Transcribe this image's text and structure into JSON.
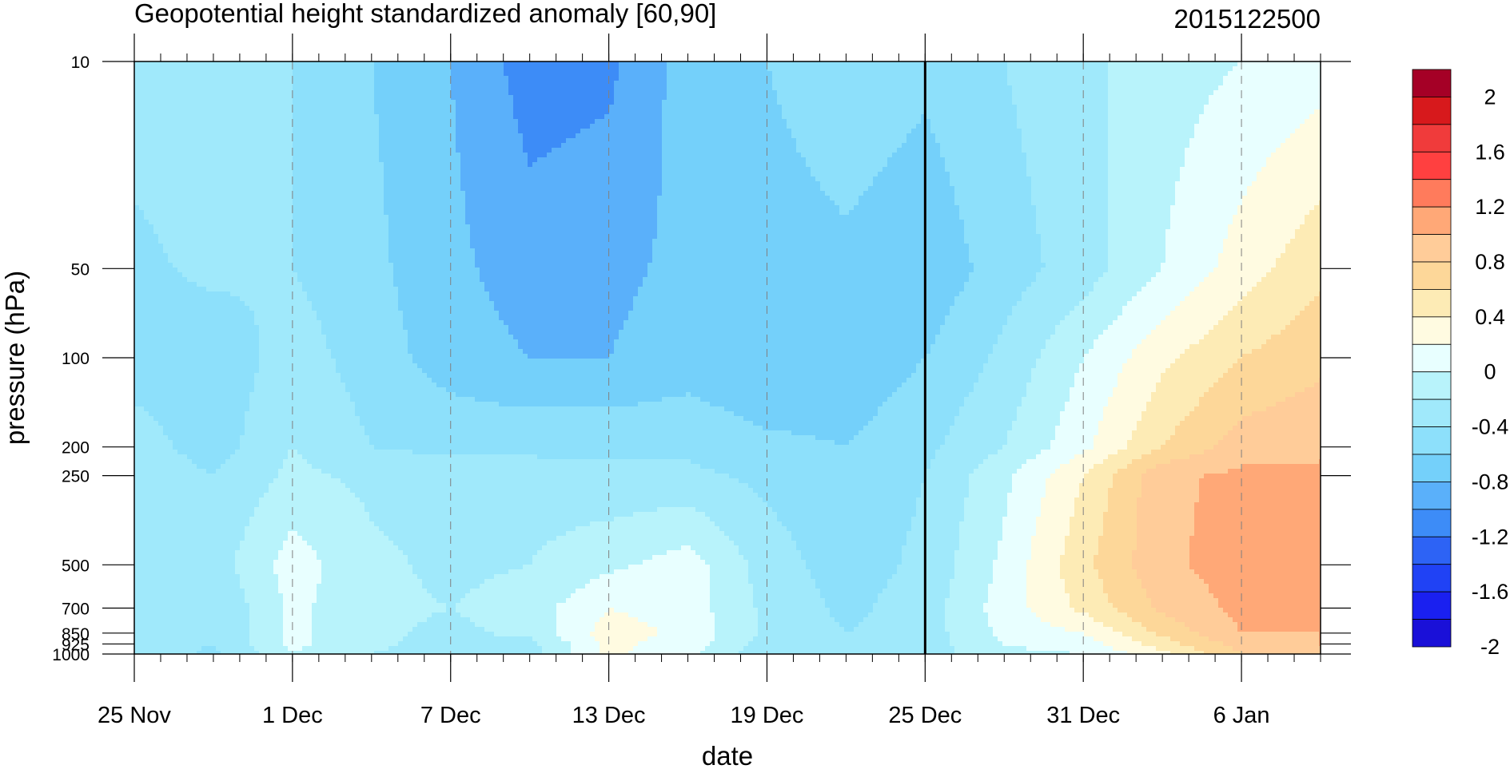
{
  "chart_data": {
    "type": "heatmap",
    "title": "Geopotential height standardized anomaly [60,90]",
    "date_stamp": "2015122500",
    "xlabel": "date",
    "ylabel": "pressure (hPa)",
    "x_ticks": [
      {
        "day": 0,
        "label": "25 Nov"
      },
      {
        "day": 6,
        "label": "1 Dec"
      },
      {
        "day": 12,
        "label": "7 Dec"
      },
      {
        "day": 18,
        "label": "13 Dec"
      },
      {
        "day": 24,
        "label": "19 Dec"
      },
      {
        "day": 30,
        "label": "25 Dec"
      },
      {
        "day": 36,
        "label": "31 Dec"
      },
      {
        "day": 42,
        "label": "6 Jan"
      }
    ],
    "x_range_days": [
      0,
      45
    ],
    "y_levels": [
      {
        "p": 10,
        "label": "10"
      },
      {
        "p": 50,
        "label": "50"
      },
      {
        "p": 100,
        "label": "100"
      },
      {
        "p": 200,
        "label": "200"
      },
      {
        "p": 250,
        "label": "250"
      },
      {
        "p": 500,
        "label": "500"
      },
      {
        "p": 700,
        "label": "700"
      },
      {
        "p": 850,
        "label": "850"
      },
      {
        "p": 925,
        "label": "925"
      },
      {
        "p": 1000,
        "label": "1000"
      }
    ],
    "y_scale": "log",
    "y_range": [
      10,
      1000
    ],
    "current_date_day": 30,
    "dates_days": [
      0,
      3,
      6,
      9,
      12,
      15,
      18,
      21,
      24,
      27,
      30,
      33,
      36,
      39,
      42,
      45
    ],
    "values": [
      [
        -0.5,
        -0.45,
        -0.6,
        -0.8,
        -1.0,
        -1.3,
        -1.25,
        -0.9,
        -0.8,
        -0.65,
        -0.75,
        -0.6,
        -0.45,
        -0.3,
        -0.2,
        -0.1
      ],
      [
        -0.65,
        -0.55,
        -0.6,
        -0.75,
        -0.95,
        -1.1,
        -1.05,
        -0.95,
        -0.9,
        -0.85,
        -0.95,
        -0.7,
        -0.5,
        -0.2,
        0.1,
        0.35
      ],
      [
        -0.7,
        -0.75,
        -0.5,
        -0.7,
        -0.9,
        -1.0,
        -1.0,
        -0.9,
        -1.0,
        -0.95,
        -0.8,
        -0.55,
        -0.2,
        0.15,
        0.4,
        0.55
      ],
      [
        -0.5,
        -0.7,
        -0.4,
        -0.6,
        -0.65,
        -0.65,
        -0.65,
        -0.65,
        -0.75,
        -0.8,
        -0.65,
        -0.4,
        -0.05,
        0.4,
        0.7,
        0.75
      ],
      [
        -0.45,
        -0.6,
        -0.35,
        -0.45,
        -0.5,
        -0.5,
        -0.55,
        -0.55,
        -0.65,
        -0.75,
        -0.6,
        -0.25,
        0.2,
        0.75,
        0.85,
        0.85
      ],
      [
        -0.4,
        -0.5,
        -0.1,
        -0.35,
        -0.45,
        -0.4,
        -0.25,
        -0.1,
        -0.5,
        -0.7,
        -0.55,
        -0.15,
        0.35,
        0.75,
        0.9,
        0.8
      ],
      [
        -0.4,
        -0.6,
        -0.15,
        -0.35,
        -0.4,
        -0.3,
        0.0,
        -0.1,
        -0.45,
        -0.65,
        -0.5,
        -0.1,
        0.25,
        0.65,
        0.85,
        0.8
      ],
      [
        -0.45,
        -0.6,
        -0.15,
        -0.35,
        -0.45,
        -0.35,
        0.1,
        -0.05,
        -0.45,
        -0.6,
        -0.5,
        -0.15,
        0.0,
        0.45,
        0.8,
        0.8
      ],
      [
        -0.45,
        -0.6,
        -0.15,
        -0.35,
        -0.5,
        -0.45,
        0.05,
        -0.1,
        -0.5,
        -0.6,
        -0.5,
        -0.2,
        -0.1,
        0.3,
        0.7,
        0.8
      ],
      [
        -0.45,
        -0.65,
        -0.2,
        -0.4,
        -0.55,
        -0.5,
        0.05,
        -0.15,
        -0.55,
        -0.6,
        -0.5,
        -0.25,
        -0.2,
        0.15,
        0.6,
        0.75
      ]
    ],
    "colorbar": {
      "labels": [
        "2",
        "1.6",
        "1.2",
        "0.8",
        "0.4",
        "0",
        "-0.4",
        "-0.8",
        "-1.2",
        "-1.6",
        "-2"
      ],
      "colors": [
        "#a50026",
        "#d7191c",
        "#f03b3b",
        "#ff4040",
        "#ff7b5c",
        "#ffa877",
        "#ffcc99",
        "#fdd799",
        "#fdebb5",
        "#fffbe1",
        "#e8ffff",
        "#b8f3fb",
        "#a0e9fb",
        "#8de0fb",
        "#74d0fa",
        "#5ab0fa",
        "#3d8cf7",
        "#2d63f5",
        "#2042f5",
        "#1a20f0",
        "#1a10d8"
      ],
      "min": -2.2,
      "max": 2.2,
      "step": 0.2
    }
  }
}
